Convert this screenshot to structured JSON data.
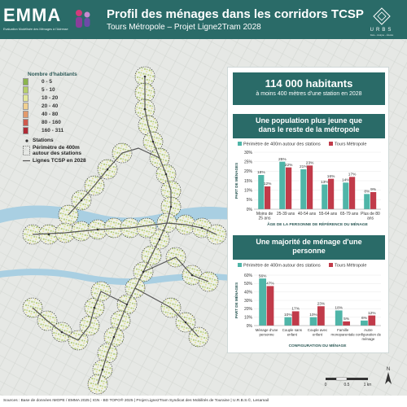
{
  "header": {
    "logo": "EMMA",
    "logo_sub": "Evaluation Modélisée des Ménages à l'Adresse",
    "title": "Profil des ménages dans les corridors TCSP",
    "subtitle": "Tours Métropole – Projet Ligne2Tram 2028",
    "brand": "URBS",
    "brand_sub": "Data – Analyse – Études"
  },
  "legend": {
    "title": "Nombre d'habitants",
    "classes": [
      {
        "label": "0 - 5",
        "color": "#8bb44d"
      },
      {
        "label": "5 - 10",
        "color": "#b6cf6a"
      },
      {
        "label": "10 - 20",
        "color": "#e3e89a"
      },
      {
        "label": "20 - 40",
        "color": "#f1d08f"
      },
      {
        "label": "40 - 80",
        "color": "#e29a6c"
      },
      {
        "label": "80 - 160",
        "color": "#cf5a4d"
      },
      {
        "label": "160 - 311",
        "color": "#b02a35"
      }
    ],
    "stations": "Stations",
    "perimeter_1": "Périmètre de 400m",
    "perimeter_2": "autour des stations",
    "lines": "Lignes TCSP en 2028"
  },
  "panel": {
    "headline": "114 000 habitants",
    "headline_sub": "à moins 400 mètres d'une station en 2028",
    "section1_l1": "Une population plus jeune que",
    "section1_l2": "dans le reste de la métropole",
    "section2_l1": "Une majorité de ménage d'une",
    "section2_l2": "personne"
  },
  "colors": {
    "teal": "#4fb5a8",
    "red": "#c13b4a",
    "header": "#2a6b68"
  },
  "chart_data": [
    {
      "type": "bar",
      "legend": [
        "Périmètre de 400m autour des stations",
        "Tours Métropole"
      ],
      "legend_placement": "top",
      "ylabel": "PART DE MÉNAGES",
      "xlabel": "ÂGE DE LA PERSONNE DE RÉFÉRENCE DU MÉNAGE",
      "yticks": [
        "0%",
        "5%",
        "10%",
        "15%",
        "20%",
        "25%",
        "30%"
      ],
      "ylim": [
        0,
        30
      ],
      "categories": [
        [
          "Moins de",
          "25 ans"
        ],
        [
          "25-39 ans"
        ],
        [
          "40-54 ans"
        ],
        [
          "55-64 ans"
        ],
        [
          "65-79 ans"
        ],
        [
          "Plus de 80",
          "ans"
        ]
      ],
      "series": [
        {
          "name": "Périmètre de 400m autour des stations",
          "values": [
            18,
            25,
            21,
            13,
            14,
            8
          ],
          "labels": [
            "18%",
            "25%",
            "21%",
            "13%",
            "14%",
            "8%"
          ]
        },
        {
          "name": "Tours Métropole",
          "values": [
            12,
            22,
            23,
            16,
            17,
            9
          ],
          "labels": [
            "12%",
            "22%",
            "23%",
            "16%",
            "17%",
            "9%"
          ]
        }
      ]
    },
    {
      "type": "bar",
      "legend": [
        "Périmètre de 400m autour des stations",
        "Tours Métropole"
      ],
      "legend_placement": "top",
      "ylabel": "PART DE MÉNAGES",
      "xlabel": "CONFIGURATION DU MÉNAGE",
      "yticks": [
        "0%",
        "10%",
        "20%",
        "30%",
        "40%",
        "50%",
        "60%"
      ],
      "ylim": [
        0,
        60
      ],
      "categories": [
        [
          "Ménage d'une",
          "personne"
        ],
        [
          "Couple sans",
          "enfant"
        ],
        [
          "Couple avec",
          "enfant"
        ],
        [
          "Famille",
          "monoparentale"
        ],
        [
          "Autre",
          "configuration de",
          "ménage"
        ]
      ],
      "series": [
        {
          "name": "Périmètre de 400m autour des stations",
          "values": [
            56,
            10,
            10,
            18,
            6
          ],
          "labels": [
            "56%",
            "10%",
            "10%",
            "18%",
            "6%"
          ]
        },
        {
          "name": "Tours Métropole",
          "values": [
            47,
            17,
            23,
            5,
            12
          ],
          "labels": [
            "47%",
            "17%",
            "23%",
            "5%",
            "12%"
          ]
        }
      ]
    }
  ],
  "scale": {
    "labels": [
      "0",
      "0.5",
      "1 km"
    ]
  },
  "north": "N",
  "footer": "Sources : Base de données IMOPE / EMMA 2025 | IGN - BD TOPO® 2025 | Projet Ligne2Tram Syndicat des Mobilités de Touraine | U.R.B.S.©, Lesamail"
}
